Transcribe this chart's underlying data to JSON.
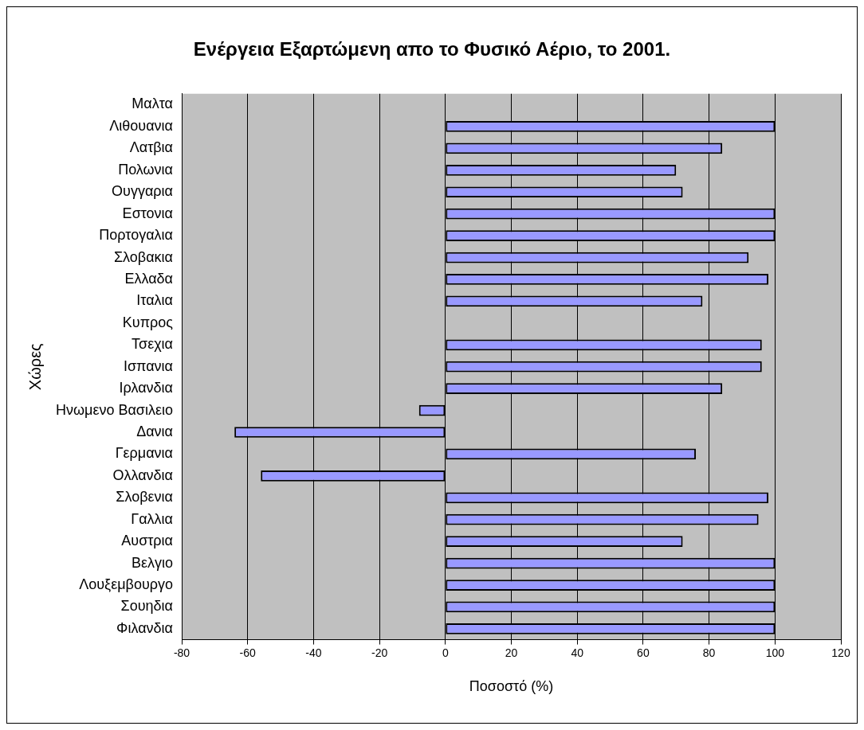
{
  "chart_data": {
    "type": "bar",
    "orientation": "horizontal",
    "title": "Ενέργεια Εξαρτώμενη απο το Φυσικό Αέριο, το 2001.",
    "xlabel": "Ποσοστό (%)",
    "ylabel": "Χώρες",
    "categories": [
      "Μαλτα",
      "Λιθουανια",
      "Λατβια",
      "Πολωνια",
      "Ουγγαρια",
      "Εστονια",
      "Πορτογαλια",
      "Σλοβακια",
      "Ελλαδα",
      "Ιταλια",
      "Κυπρος",
      "Τσεχια",
      "Ισπανια",
      "Ιρλανδια",
      "Ηνωμενο Βασιλειο",
      "Δανια",
      "Γερμανια",
      "Ολλανδια",
      "Σλοβενια",
      "Γαλλια",
      "Αυστρια",
      "Βελγιο",
      "Λουξεμβουργο",
      "Σουηδια",
      "Φιλανδια"
    ],
    "values": [
      null,
      100,
      84,
      70,
      72,
      100,
      100,
      92,
      98,
      78,
      null,
      96,
      96,
      84,
      -8,
      -64,
      76,
      -56,
      98,
      95,
      72,
      100,
      100,
      100,
      100
    ],
    "color": "#9999ff",
    "xlim": [
      -80,
      120
    ],
    "xticks": [
      -80,
      -60,
      -40,
      -20,
      0,
      20,
      40,
      60,
      80,
      100,
      120
    ],
    "grid": "x",
    "legend": false
  }
}
